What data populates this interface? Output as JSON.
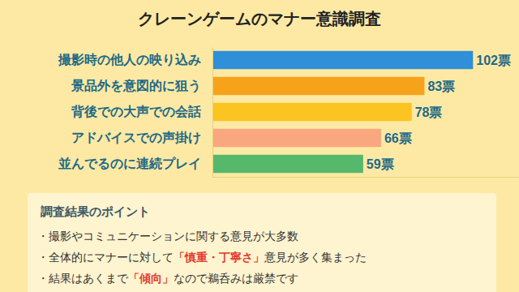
{
  "chart_data": {
    "type": "bar",
    "orientation": "horizontal",
    "title": "クレーンゲームのマナー意識調査",
    "categories": [
      "撮影時の他人の映り込み",
      "景品外を意図的に狙う",
      "背後での大声での会話",
      "アドバイスでの声掛け",
      "並んでるのに連続プレイ"
    ],
    "values": [
      102,
      83,
      78,
      66,
      59
    ],
    "value_labels": [
      "102票",
      "83票",
      "78票",
      "66票",
      "59票"
    ],
    "colors": [
      "#2f8fd8",
      "#f7a21b",
      "#fbc420",
      "#f9a77f",
      "#55b86b"
    ],
    "xlim": [
      0,
      120
    ],
    "data_labels": true,
    "tick_labels": "y",
    "grid": false,
    "annotations": [
      "調査結果のポイント",
      "・撮影やコミュニケーションに関する意見が大多数",
      "・全体的にマナーに対して「慎重・丁寧さ」意見が多く集まった",
      "・結果はあくまで「傾向」なので鵜呑みは厳禁です"
    ]
  }
}
